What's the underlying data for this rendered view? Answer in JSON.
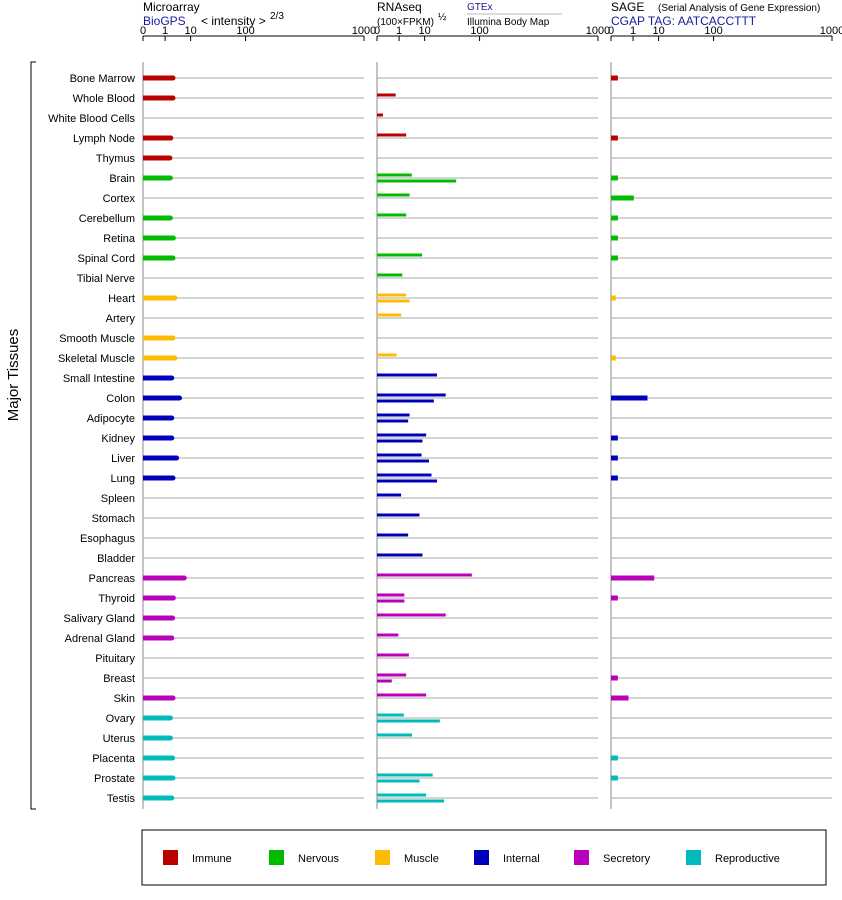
{
  "chart_data": {
    "type": "bar",
    "y_axis_label": "Major Tissues",
    "tissues": [
      "Bone Marrow",
      "Whole Blood",
      "White Blood Cells",
      "Lymph Node",
      "Thymus",
      "Brain",
      "Cortex",
      "Cerebellum",
      "Retina",
      "Spinal Cord",
      "Tibial Nerve",
      "Heart",
      "Artery",
      "Smooth Muscle",
      "Skeletal Muscle",
      "Small Intestine",
      "Colon",
      "Adipocyte",
      "Kidney",
      "Liver",
      "Lung",
      "Spleen",
      "Stomach",
      "Esophagus",
      "Bladder",
      "Pancreas",
      "Thyroid",
      "Salivary Gland",
      "Adrenal Gland",
      "Pituitary",
      "Breast",
      "Skin",
      "Ovary",
      "Uterus",
      "Placenta",
      "Prostate",
      "Testis"
    ],
    "groups": [
      "Immune",
      "Immune",
      "Immune",
      "Immune",
      "Immune",
      "Nervous",
      "Nervous",
      "Nervous",
      "Nervous",
      "Nervous",
      "Nervous",
      "Muscle",
      "Muscle",
      "Muscle",
      "Muscle",
      "Internal",
      "Internal",
      "Internal",
      "Internal",
      "Internal",
      "Internal",
      "Internal",
      "Internal",
      "Internal",
      "Internal",
      "Secretory",
      "Secretory",
      "Secretory",
      "Secretory",
      "Secretory",
      "Secretory",
      "Secretory",
      "Reproductive",
      "Reproductive",
      "Reproductive",
      "Reproductive",
      "Reproductive"
    ],
    "legend": [
      {
        "name": "Immune",
        "color": "#bb0000"
      },
      {
        "name": "Nervous",
        "color": "#00bb00"
      },
      {
        "name": "Muscle",
        "color": "#ffbb00"
      },
      {
        "name": "Internal",
        "color": "#0000bb"
      },
      {
        "name": "Secretory",
        "color": "#bb00bb"
      },
      {
        "name": "Reproductive",
        "color": "#00bbbb"
      }
    ],
    "panels": [
      {
        "key": "microarray",
        "title": "Microarray",
        "subtitle_link": "BioGPS",
        "subtitle_text": "< intensity >",
        "subtitle_exp": "2/3",
        "ticks": [
          "0",
          "1",
          "10",
          "100",
          "1000"
        ],
        "xlim": [
          0,
          1000
        ],
        "series": [
          [
            2.5
          ],
          [
            2.5
          ],
          [],
          [
            2.0
          ],
          [
            1.8
          ],
          [
            1.9
          ],
          [],
          [
            1.9
          ],
          [
            2.6
          ],
          [
            2.5
          ],
          [],
          [
            3.0
          ],
          [],
          [
            2.5
          ],
          [
            3.0
          ],
          [
            2.2
          ],
          [
            4.5
          ],
          [
            2.2
          ],
          [
            2.2
          ],
          [
            3.5
          ],
          [
            2.5
          ],
          [],
          [],
          [],
          [],
          [
            6.5
          ],
          [
            2.6
          ],
          [
            2.4
          ],
          [
            2.2
          ],
          [],
          [],
          [
            2.5
          ],
          [
            1.9
          ],
          [
            1.9
          ],
          [
            2.4
          ],
          [
            2.5
          ],
          [
            2.2
          ]
        ]
      },
      {
        "key": "rnaseq",
        "title": "RNAseq",
        "subtitle_text": "(100×FPKM)",
        "subtitle_exp": "½",
        "source_1": "GTEx",
        "source_2": "Illumina Body Map",
        "ticks": [
          "0",
          "1",
          "10",
          "100",
          "1000"
        ],
        "xlim": [
          0,
          1000
        ],
        "series": [
          [],
          [
            0.6
          ],
          [
            0.02
          ],
          [
            2.3
          ],
          [],
          [
            3.9,
            46
          ],
          [
            3.2
          ],
          [
            2.3
          ],
          [],
          [
            8.5
          ],
          [
            1.5
          ],
          [
            2.3,
            3.2
          ],
          [
            1.3
          ],
          [],
          [
            0.7
          ],
          [
            20
          ],
          [
            30,
            17
          ],
          [
            3.2,
            2.8
          ],
          [
            11,
            8.7
          ],
          [
            8.2,
            13
          ],
          [
            15,
            20
          ],
          [
            1.3
          ],
          [
            7.1
          ],
          [
            2.8
          ],
          [
            8.7
          ],
          [
            79
          ],
          [
            1.9,
            1.9
          ],
          [
            30
          ],
          [
            0.9
          ],
          [
            3.0
          ],
          [
            2.3,
            0.3
          ],
          [
            11
          ],
          [
            1.8,
            23
          ],
          [
            4.0
          ],
          [],
          [
            16,
            7.1
          ],
          [
            11,
            28
          ]
        ]
      },
      {
        "key": "sage",
        "title": "SAGE",
        "subtitle_note": "(Serial Analysis of Gene Expression)",
        "subtitle_link": "CGAP TAG: AATCACCTTT",
        "ticks": [
          "0",
          "1",
          "10",
          "100",
          "1000"
        ],
        "xlim": [
          0,
          1000
        ],
        "series": [
          [
            0.03
          ],
          [],
          [],
          [
            0.03
          ],
          [],
          [
            0.03
          ],
          [
            1.1
          ],
          [
            0.03
          ],
          [
            0.03
          ],
          [
            0.03
          ],
          [],
          [
            0.01
          ],
          [],
          [],
          [
            0.01
          ],
          [],
          [
            4.5
          ],
          [],
          [
            0.03
          ],
          [
            0.03
          ],
          [
            0.03
          ],
          [],
          [],
          [],
          [],
          [
            7.5
          ],
          [
            0.03
          ],
          [],
          [],
          [],
          [
            0.03
          ],
          [
            0.5
          ],
          [],
          [],
          [
            0.03
          ],
          [
            0.03
          ],
          []
        ]
      }
    ]
  }
}
